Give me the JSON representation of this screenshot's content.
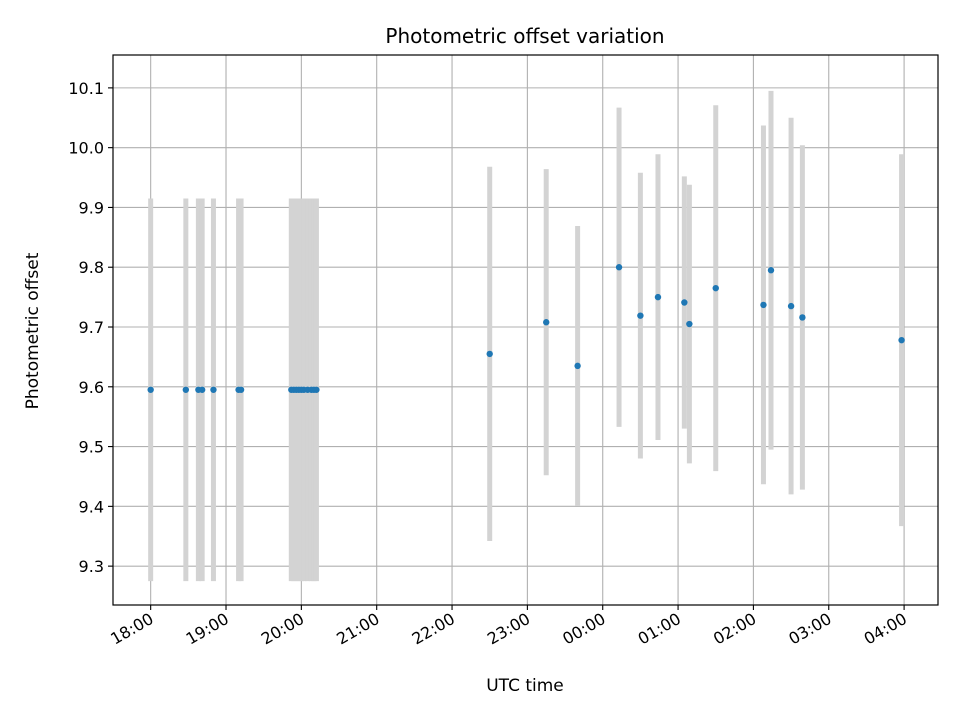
{
  "chart_data": {
    "type": "scatter",
    "title": "Photometric offset variation",
    "xlabel": "UTC time",
    "ylabel": "Photometric offset",
    "grid": true,
    "x_axis_kind": "time-of-day",
    "x_ticks": [
      "18:00",
      "19:00",
      "20:00",
      "21:00",
      "22:00",
      "23:00",
      "00:00",
      "01:00",
      "02:00",
      "03:00",
      "04:00"
    ],
    "x_range_hours": [
      17.5,
      28.45
    ],
    "y_ticks": [
      9.3,
      9.4,
      9.5,
      9.6,
      9.7,
      9.8,
      9.9,
      10.0,
      10.1
    ],
    "y_tick_labels": [
      "9.3",
      "9.4",
      "9.5",
      "9.6",
      "9.7",
      "9.8",
      "9.9",
      "10.0",
      "10.1"
    ],
    "ylim": [
      9.235,
      10.155
    ],
    "colors": {
      "point": "#1f77b4",
      "errorbar": "#d3d3d3",
      "grid": "#b0b0b0"
    },
    "series": [
      {
        "points": [
          {
            "time": "18:00",
            "y": 9.595,
            "yerr": 0.32
          },
          {
            "time": "18:28",
            "y": 9.595,
            "yerr": 0.32
          },
          {
            "time": "18:38",
            "y": 9.595,
            "yerr": 0.32
          },
          {
            "time": "18:41",
            "y": 9.595,
            "yerr": 0.32
          },
          {
            "time": "18:50",
            "y": 9.595,
            "yerr": 0.32
          },
          {
            "time": "19:10",
            "y": 9.595,
            "yerr": 0.32
          },
          {
            "time": "19:12",
            "y": 9.595,
            "yerr": 0.32
          },
          {
            "time": "19:52",
            "y": 9.595,
            "yerr": 0.32
          },
          {
            "time": "19:54",
            "y": 9.595,
            "yerr": 0.32
          },
          {
            "time": "19:56",
            "y": 9.595,
            "yerr": 0.32
          },
          {
            "time": "19:58",
            "y": 9.595,
            "yerr": 0.32
          },
          {
            "time": "20:00",
            "y": 9.595,
            "yerr": 0.32
          },
          {
            "time": "20:02",
            "y": 9.595,
            "yerr": 0.32
          },
          {
            "time": "20:05",
            "y": 9.595,
            "yerr": 0.32
          },
          {
            "time": "20:08",
            "y": 9.595,
            "yerr": 0.32
          },
          {
            "time": "20:10",
            "y": 9.595,
            "yerr": 0.32
          },
          {
            "time": "20:12",
            "y": 9.595,
            "yerr": 0.32
          },
          {
            "time": "22:30",
            "y": 9.655,
            "yerr": 0.313
          },
          {
            "time": "23:15",
            "y": 9.708,
            "yerr": 0.256
          },
          {
            "time": "23:40",
            "y": 9.635,
            "yerr": 0.234
          },
          {
            "time": "00:13",
            "y": 9.8,
            "yerr": 0.267
          },
          {
            "time": "00:30",
            "y": 9.719,
            "yerr": 0.239
          },
          {
            "time": "00:44",
            "y": 9.75,
            "yerr": 0.239
          },
          {
            "time": "01:05",
            "y": 9.741,
            "yerr": 0.211
          },
          {
            "time": "01:09",
            "y": 9.705,
            "yerr": 0.233
          },
          {
            "time": "01:30",
            "y": 9.765,
            "yerr": 0.306
          },
          {
            "time": "02:08",
            "y": 9.737,
            "yerr": 0.3
          },
          {
            "time": "02:14",
            "y": 9.795,
            "yerr": 0.3
          },
          {
            "time": "02:30",
            "y": 9.735,
            "yerr": 0.315
          },
          {
            "time": "02:39",
            "y": 9.716,
            "yerr": 0.288
          },
          {
            "time": "03:58",
            "y": 9.678,
            "yerr": 0.311
          }
        ]
      }
    ]
  }
}
